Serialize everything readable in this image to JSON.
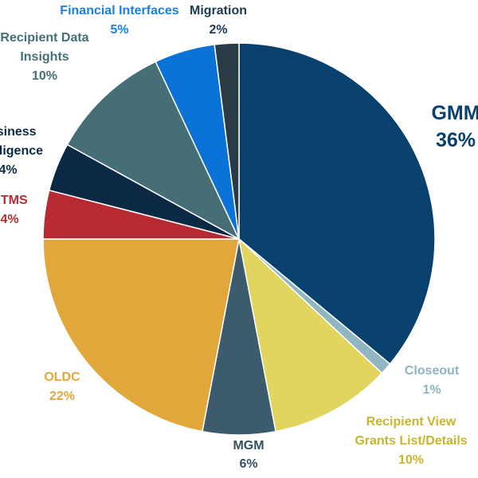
{
  "chart_data": {
    "type": "pie",
    "title": "",
    "slices": [
      {
        "label": "GMM",
        "value": 36,
        "display": "36%",
        "color": "#08406E"
      },
      {
        "label": "Closeout",
        "value": 1,
        "display": "1%",
        "color": "#90B6C2"
      },
      {
        "label": "Recipient View Grants List/Details",
        "value": 10,
        "display": "10%",
        "color": "#E2D55F"
      },
      {
        "label": "MGM",
        "value": 6,
        "display": "6%",
        "color": "#3C5B6C"
      },
      {
        "label": "OLDC",
        "value": 22,
        "display": "22%",
        "color": "#E1A73A"
      },
      {
        "label": "RTMS",
        "value": 4,
        "display": "4%",
        "color": "#B82A32"
      },
      {
        "label": "Business Intelligence",
        "value": 4,
        "display": "4%",
        "color": "#0B2944"
      },
      {
        "label": "Recipient Data Insights",
        "value": 10,
        "display": "10%",
        "color": "#466E76"
      },
      {
        "label": "Financial Interfaces",
        "value": 5,
        "display": "5%",
        "color": "#0B72D8"
      },
      {
        "label": "Migration",
        "value": 2,
        "display": "2%",
        "color": "#2A3B46"
      }
    ]
  }
}
